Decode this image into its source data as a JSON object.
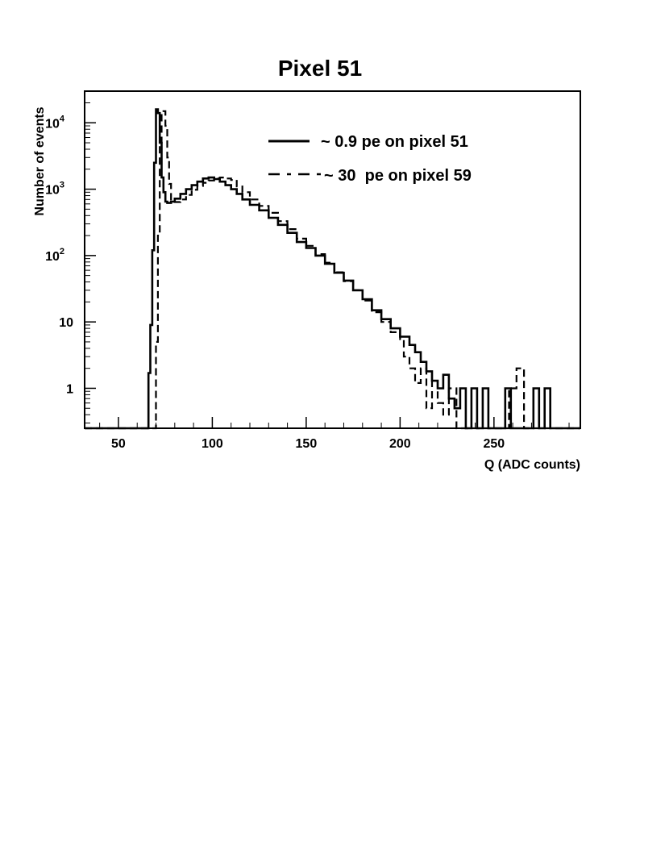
{
  "chart_data": {
    "type": "line",
    "title": "Pixel 51",
    "xlabel": "Q (ADC counts)",
    "ylabel": "Number of events",
    "xlim": [
      32,
      296
    ],
    "ylim": [
      0.25,
      30000
    ],
    "yscale": "log",
    "grid": false,
    "legend_position": "top-right",
    "x_ticks": [
      {
        "value": 50,
        "label": "50"
      },
      {
        "value": 100,
        "label": "100"
      },
      {
        "value": 150,
        "label": "150"
      },
      {
        "value": 200,
        "label": "200"
      },
      {
        "value": 250,
        "label": "250"
      }
    ],
    "y_ticks": [
      {
        "value": 1,
        "base": "1",
        "exp": ""
      },
      {
        "value": 10,
        "base": "10",
        "exp": ""
      },
      {
        "value": 100,
        "base": "10",
        "exp": "2"
      },
      {
        "value": 1000,
        "base": "10",
        "exp": "3"
      },
      {
        "value": 10000,
        "base": "10",
        "exp": "4"
      }
    ],
    "series": [
      {
        "name": "~ 0.9 pe on pixel 51",
        "style": "solid",
        "color": "#000000",
        "x": [
          32,
          65,
          66,
          67,
          68,
          69,
          70,
          71,
          72,
          73,
          74,
          75,
          76,
          78,
          80,
          83,
          86,
          89,
          92,
          95,
          98,
          101,
          104,
          107,
          110,
          113,
          116,
          120,
          125,
          130,
          135,
          140,
          145,
          150,
          155,
          160,
          165,
          170,
          175,
          180,
          185,
          190,
          195,
          200,
          205,
          208,
          211,
          214,
          217,
          220,
          223,
          226,
          229,
          232,
          235,
          238,
          241,
          244,
          247,
          250,
          253,
          256,
          259,
          262,
          265,
          268,
          271,
          274,
          277,
          280,
          296
        ],
        "y": [
          0.25,
          0.25,
          1.7,
          9,
          120,
          2500,
          16000,
          14000,
          5000,
          1500,
          900,
          650,
          620,
          650,
          720,
          850,
          1000,
          1150,
          1300,
          1450,
          1500,
          1420,
          1300,
          1150,
          1000,
          850,
          700,
          580,
          480,
          370,
          290,
          220,
          160,
          130,
          100,
          75,
          55,
          42,
          30,
          22,
          15,
          11,
          8,
          6,
          4.5,
          3.5,
          2.5,
          1.8,
          1.3,
          1,
          1.6,
          0.7,
          0.5,
          1,
          0.25,
          1,
          0.25,
          1,
          0.25,
          0.25,
          0.25,
          1,
          0.25,
          0.25,
          0.25,
          0.25,
          1,
          0.25,
          1,
          0.25,
          0.25
        ]
      },
      {
        "name": "~ 30  pe on pixel 59",
        "style": "dashed",
        "color": "#000000",
        "x": [
          32,
          68,
          69,
          70,
          71,
          72,
          73,
          74,
          75,
          76,
          77,
          78,
          80,
          83,
          86,
          89,
          92,
          95,
          98,
          101,
          104,
          107,
          110,
          113,
          116,
          120,
          125,
          130,
          135,
          140,
          145,
          150,
          155,
          160,
          165,
          170,
          175,
          180,
          185,
          190,
          195,
          200,
          202,
          205,
          208,
          211,
          214,
          217,
          220,
          223,
          226,
          230,
          234,
          238,
          242,
          246,
          250,
          254,
          258,
          262,
          266,
          296
        ],
        "y": [
          0.25,
          0.25,
          0.25,
          5,
          200,
          5000,
          14000,
          15000,
          9000,
          3000,
          1200,
          700,
          640,
          700,
          820,
          980,
          1120,
          1250,
          1350,
          1450,
          1500,
          1450,
          1380,
          1100,
          900,
          700,
          560,
          440,
          330,
          250,
          180,
          140,
          105,
          78,
          56,
          41,
          30,
          21,
          14,
          10,
          7,
          5.5,
          3,
          2,
          1.2,
          2,
          0.5,
          1.3,
          0.6,
          0.4,
          1,
          0.25,
          0.25,
          0.25,
          0.25,
          0.25,
          0.25,
          0.25,
          1,
          2,
          0.25,
          0.25
        ]
      }
    ]
  }
}
